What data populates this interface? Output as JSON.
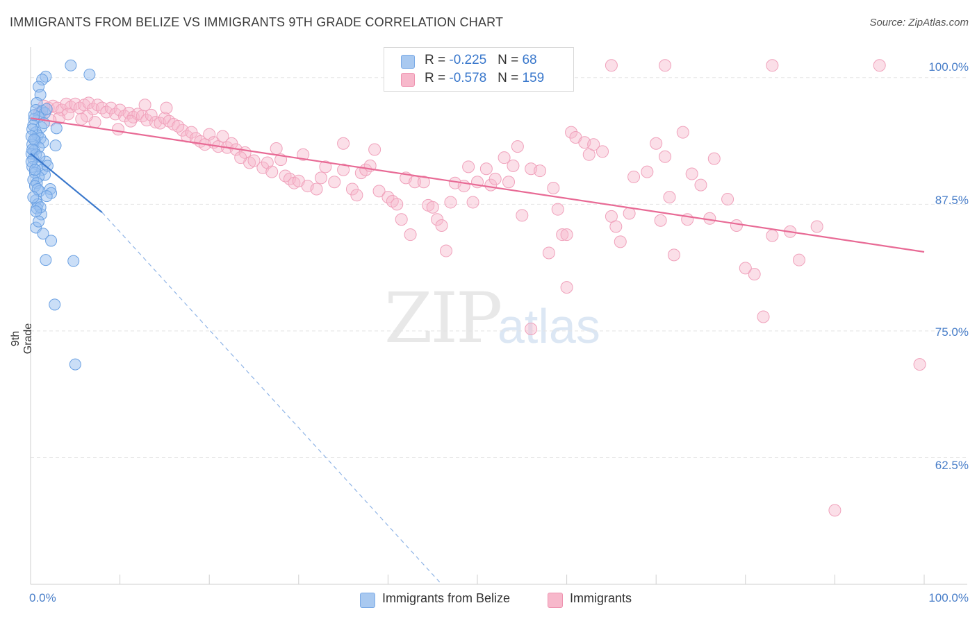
{
  "header": {
    "title": "IMMIGRANTS FROM BELIZE VS IMMIGRANTS 9TH GRADE CORRELATION CHART",
    "source": "Source: ZipAtlas.com"
  },
  "legend": {
    "rows": [
      {
        "r_label": "R = ",
        "r_value": "-0.225",
        "n_label": "N = ",
        "n_value": "68",
        "color": "#a9c9f0"
      },
      {
        "r_label": "R = ",
        "r_value": "-0.578",
        "n_label": "N = ",
        "n_value": "159",
        "color": "#f7b8cb"
      }
    ]
  },
  "bottom_legend": {
    "items": [
      {
        "label": "Immigrants from Belize",
        "color": "#a9c9f0"
      },
      {
        "label": "Immigrants",
        "color": "#f7b8cb"
      }
    ]
  },
  "watermark": {
    "zip": "ZIP",
    "atlas": "atlas"
  },
  "chart_data": {
    "type": "scatter",
    "xlabel": "",
    "ylabel": "9th Grade",
    "xlim": [
      0,
      100
    ],
    "ylim": [
      50,
      103
    ],
    "x_tick_labels": [
      "0.0%",
      "100.0%"
    ],
    "y_ticks": [
      100.0,
      87.5,
      75.0,
      62.5
    ],
    "y_tick_labels": [
      "100.0%",
      "87.5%",
      "75.0%",
      "62.5%"
    ],
    "grid": true,
    "colors": {
      "belize": "#5b97dd",
      "immigrants": "#ef8fae",
      "belize_line": "#3a78cc",
      "immigrants_line": "#e86a95"
    },
    "series": [
      {
        "name": "Immigrants from Belize",
        "trend": {
          "x0": 0.0,
          "y0": 92.5,
          "x1": 8.0,
          "y1": 86.7,
          "dashed_to_x": 46.0,
          "dashed_to_y": 50.0
        },
        "points": [
          [
            4.5,
            101.2
          ],
          [
            6.6,
            100.3
          ],
          [
            1.7,
            100.1
          ],
          [
            1.3,
            99.8
          ],
          [
            0.9,
            99.1
          ],
          [
            1.1,
            98.3
          ],
          [
            0.7,
            97.5
          ],
          [
            0.6,
            96.8
          ],
          [
            1.3,
            96.7
          ],
          [
            1.6,
            96.5
          ],
          [
            0.9,
            96.1
          ],
          [
            0.4,
            95.9
          ],
          [
            0.3,
            95.3
          ],
          [
            1.2,
            95.1
          ],
          [
            2.9,
            95.0
          ],
          [
            0.6,
            94.6
          ],
          [
            0.8,
            94.3
          ],
          [
            1.1,
            94.0
          ],
          [
            0.5,
            93.8
          ],
          [
            1.4,
            93.6
          ],
          [
            0.2,
            93.4
          ],
          [
            2.8,
            93.3
          ],
          [
            0.9,
            93.1
          ],
          [
            0.4,
            92.8
          ],
          [
            0.1,
            92.5
          ],
          [
            0.6,
            92.4
          ],
          [
            0.3,
            92.0
          ],
          [
            1.7,
            91.7
          ],
          [
            0.8,
            91.4
          ],
          [
            0.2,
            91.2
          ],
          [
            1.3,
            90.9
          ],
          [
            0.5,
            90.6
          ],
          [
            1.6,
            90.4
          ],
          [
            0.9,
            90.2
          ],
          [
            0.3,
            89.9
          ],
          [
            0.7,
            89.6
          ],
          [
            0.5,
            89.3
          ],
          [
            2.2,
            89.0
          ],
          [
            1.0,
            88.8
          ],
          [
            2.3,
            88.6
          ],
          [
            1.8,
            88.3
          ],
          [
            0.6,
            87.9
          ],
          [
            0.8,
            87.5
          ],
          [
            0.7,
            87.1
          ],
          [
            1.2,
            86.5
          ],
          [
            0.6,
            85.2
          ],
          [
            1.4,
            84.6
          ],
          [
            2.3,
            83.9
          ],
          [
            1.7,
            82.0
          ],
          [
            4.8,
            81.9
          ],
          [
            2.7,
            77.6
          ],
          [
            5.0,
            71.7
          ],
          [
            0.2,
            94.9
          ],
          [
            0.1,
            94.2
          ],
          [
            0.4,
            93.9
          ],
          [
            0.2,
            92.9
          ],
          [
            1.0,
            92.2
          ],
          [
            0.1,
            91.7
          ],
          [
            0.5,
            90.9
          ],
          [
            1.9,
            91.3
          ],
          [
            0.8,
            89.0
          ],
          [
            0.3,
            88.2
          ],
          [
            1.1,
            87.2
          ],
          [
            0.6,
            86.8
          ],
          [
            0.9,
            85.8
          ],
          [
            1.5,
            95.5
          ],
          [
            0.4,
            96.3
          ],
          [
            1.8,
            96.9
          ]
        ]
      },
      {
        "name": "Immigrants",
        "trend": {
          "x0": 0.0,
          "y0": 96.0,
          "x1": 100.0,
          "y1": 82.8
        },
        "points": [
          [
            65.0,
            101.2
          ],
          [
            71.0,
            101.2
          ],
          [
            83.0,
            101.2
          ],
          [
            95.0,
            101.2
          ],
          [
            1.0,
            96.5
          ],
          [
            2.0,
            97.0
          ],
          [
            2.5,
            97.2
          ],
          [
            3.0,
            97.0
          ],
          [
            3.5,
            96.8
          ],
          [
            4.0,
            97.4
          ],
          [
            4.5,
            97.1
          ],
          [
            5.0,
            97.4
          ],
          [
            5.5,
            97.0
          ],
          [
            6.0,
            97.3
          ],
          [
            6.5,
            97.5
          ],
          [
            7.0,
            96.9
          ],
          [
            7.5,
            97.3
          ],
          [
            8.0,
            97.0
          ],
          [
            8.5,
            96.6
          ],
          [
            9.0,
            97.0
          ],
          [
            9.5,
            96.4
          ],
          [
            10.0,
            96.8
          ],
          [
            10.5,
            96.2
          ],
          [
            11.0,
            96.5
          ],
          [
            11.5,
            96.1
          ],
          [
            12.0,
            96.4
          ],
          [
            12.5,
            96.2
          ],
          [
            13.0,
            95.8
          ],
          [
            13.5,
            96.3
          ],
          [
            14.0,
            95.6
          ],
          [
            14.5,
            95.5
          ],
          [
            15.0,
            96.0
          ],
          [
            15.5,
            95.7
          ],
          [
            16.0,
            95.4
          ],
          [
            17.0,
            94.8
          ],
          [
            17.5,
            94.2
          ],
          [
            18.0,
            94.6
          ],
          [
            18.5,
            94.0
          ],
          [
            19.0,
            93.7
          ],
          [
            19.5,
            93.4
          ],
          [
            20.0,
            94.4
          ],
          [
            20.5,
            93.6
          ],
          [
            21.0,
            93.2
          ],
          [
            22.0,
            93.1
          ],
          [
            22.5,
            93.5
          ],
          [
            23.0,
            92.9
          ],
          [
            24.0,
            92.6
          ],
          [
            24.5,
            91.6
          ],
          [
            25.0,
            91.8
          ],
          [
            26.0,
            91.1
          ],
          [
            26.5,
            91.6
          ],
          [
            27.0,
            90.7
          ],
          [
            28.0,
            91.9
          ],
          [
            28.5,
            90.3
          ],
          [
            29.0,
            90.0
          ],
          [
            29.5,
            89.6
          ],
          [
            30.0,
            89.8
          ],
          [
            31.0,
            89.3
          ],
          [
            32.0,
            89.0
          ],
          [
            32.5,
            90.1
          ],
          [
            33.0,
            91.2
          ],
          [
            34.0,
            89.7
          ],
          [
            35.0,
            90.9
          ],
          [
            36.0,
            89.0
          ],
          [
            36.5,
            88.4
          ],
          [
            37.0,
            90.6
          ],
          [
            37.5,
            90.9
          ],
          [
            38.0,
            91.3
          ],
          [
            39.0,
            88.8
          ],
          [
            40.0,
            88.2
          ],
          [
            40.5,
            87.8
          ],
          [
            41.0,
            87.5
          ],
          [
            41.5,
            86.0
          ],
          [
            42.0,
            90.1
          ],
          [
            42.5,
            84.5
          ],
          [
            43.0,
            89.7
          ],
          [
            44.0,
            89.7
          ],
          [
            44.5,
            87.4
          ],
          [
            45.0,
            87.2
          ],
          [
            45.5,
            86.0
          ],
          [
            46.0,
            85.4
          ],
          [
            46.5,
            82.9
          ],
          [
            47.0,
            87.7
          ],
          [
            47.5,
            89.6
          ],
          [
            48.5,
            89.3
          ],
          [
            49.0,
            91.2
          ],
          [
            49.5,
            87.7
          ],
          [
            50.0,
            89.7
          ],
          [
            51.0,
            91.0
          ],
          [
            51.5,
            89.4
          ],
          [
            52.0,
            90.0
          ],
          [
            53.0,
            92.1
          ],
          [
            53.5,
            89.7
          ],
          [
            54.0,
            91.3
          ],
          [
            54.5,
            93.2
          ],
          [
            55.0,
            86.4
          ],
          [
            56.0,
            91.0
          ],
          [
            57.0,
            90.8
          ],
          [
            58.0,
            82.7
          ],
          [
            58.5,
            89.1
          ],
          [
            59.0,
            87.0
          ],
          [
            59.5,
            84.5
          ],
          [
            60.0,
            84.5
          ],
          [
            60.5,
            94.6
          ],
          [
            61.0,
            94.1
          ],
          [
            62.0,
            93.6
          ],
          [
            62.5,
            92.4
          ],
          [
            63.0,
            93.4
          ],
          [
            64.0,
            92.7
          ],
          [
            65.0,
            86.3
          ],
          [
            65.5,
            85.3
          ],
          [
            66.0,
            83.8
          ],
          [
            67.0,
            86.6
          ],
          [
            67.5,
            90.2
          ],
          [
            69.0,
            90.7
          ],
          [
            70.0,
            93.5
          ],
          [
            70.5,
            85.9
          ],
          [
            71.0,
            92.2
          ],
          [
            71.5,
            88.2
          ],
          [
            72.0,
            82.5
          ],
          [
            73.0,
            94.6
          ],
          [
            73.5,
            86.0
          ],
          [
            74.0,
            90.5
          ],
          [
            75.0,
            89.4
          ],
          [
            76.0,
            86.1
          ],
          [
            76.5,
            92.0
          ],
          [
            78.0,
            88.0
          ],
          [
            79.0,
            85.4
          ],
          [
            80.0,
            81.2
          ],
          [
            81.0,
            80.6
          ],
          [
            82.0,
            76.4
          ],
          [
            83.0,
            84.4
          ],
          [
            85.0,
            84.8
          ],
          [
            86.0,
            82.0
          ],
          [
            88.0,
            85.3
          ],
          [
            90.0,
            57.3
          ],
          [
            99.5,
            71.7
          ],
          [
            35.0,
            93.5
          ],
          [
            38.5,
            92.9
          ],
          [
            30.5,
            92.4
          ],
          [
            27.5,
            93.0
          ],
          [
            23.5,
            92.1
          ],
          [
            21.5,
            94.2
          ],
          [
            16.5,
            95.2
          ],
          [
            15.2,
            97.0
          ],
          [
            12.8,
            97.3
          ],
          [
            11.2,
            95.7
          ],
          [
            9.8,
            94.9
          ],
          [
            7.2,
            95.6
          ],
          [
            6.3,
            96.2
          ],
          [
            5.7,
            95.9
          ],
          [
            4.2,
            96.4
          ],
          [
            3.2,
            96.0
          ],
          [
            2.2,
            95.8
          ],
          [
            1.5,
            97.2
          ],
          [
            60.0,
            79.3
          ],
          [
            56.0,
            75.2
          ]
        ]
      }
    ]
  }
}
